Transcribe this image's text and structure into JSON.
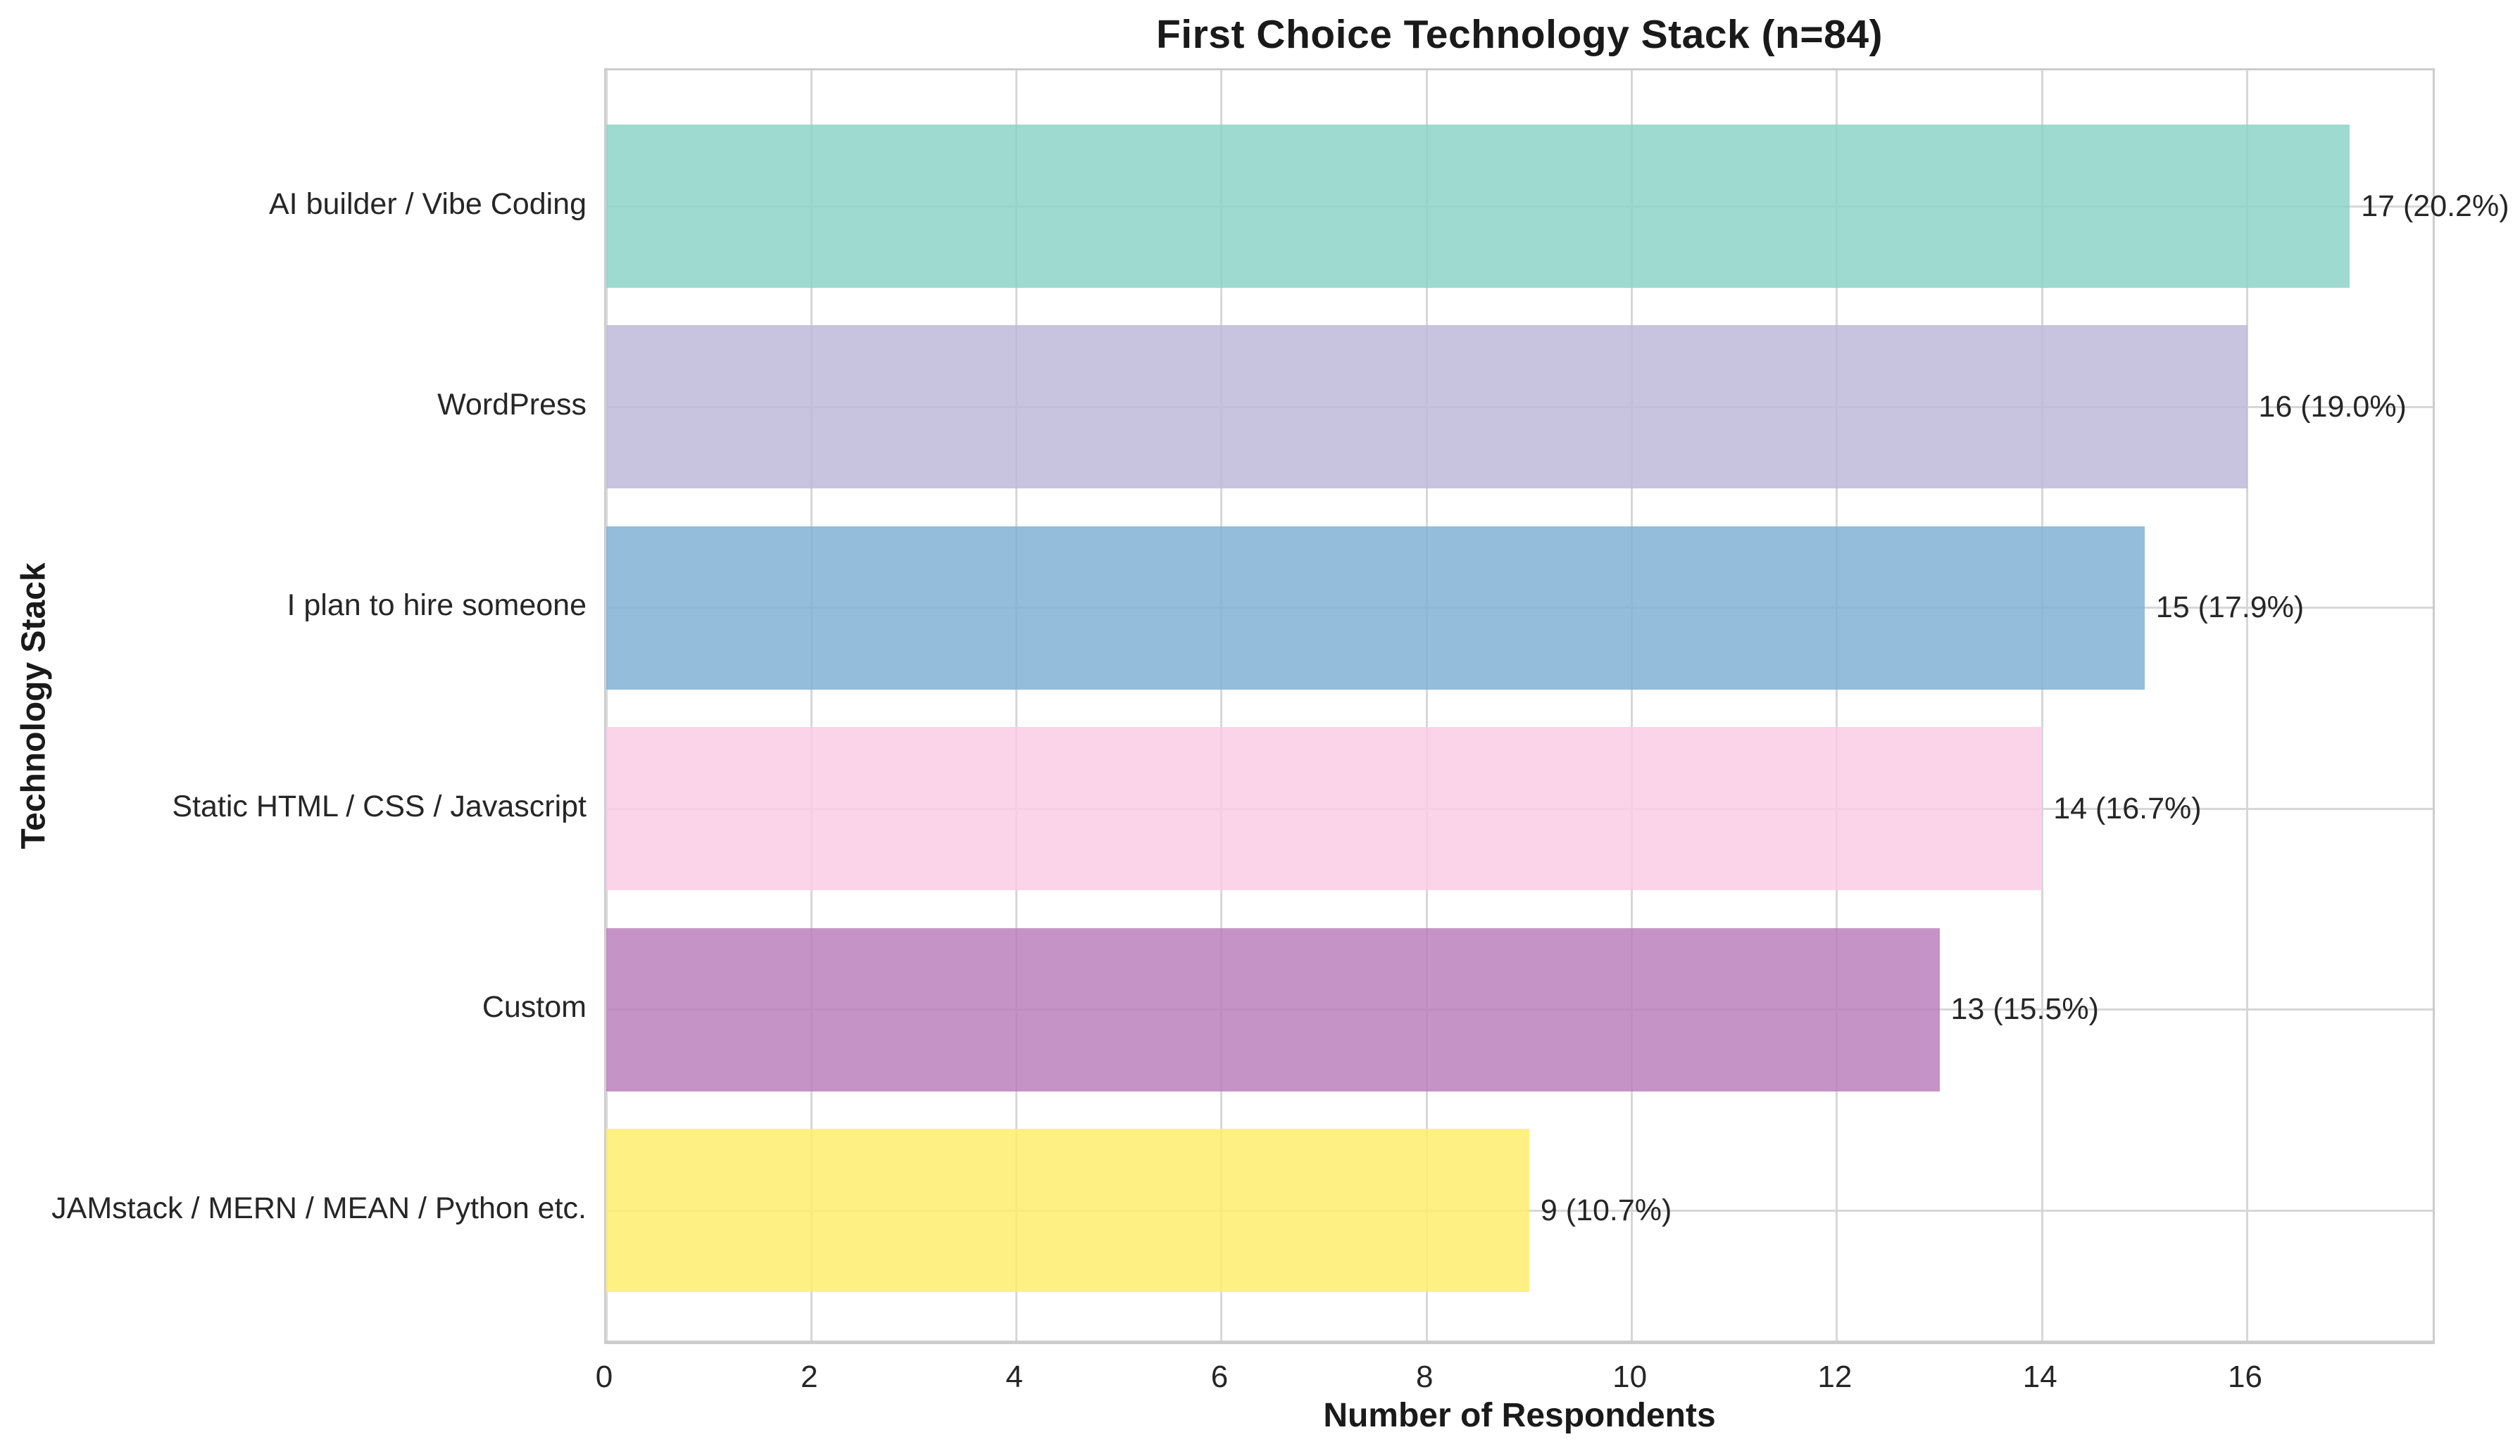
{
  "chart_data": {
    "type": "bar",
    "orientation": "horizontal",
    "title": "First Choice Technology Stack (n=84)",
    "n": 84,
    "xlabel": "Number of Respondents",
    "ylabel": "Technology Stack",
    "categories": [
      "AI builder / Vibe Coding",
      "WordPress",
      "I plan to hire someone",
      "Static HTML / CSS / Javascript",
      "Custom",
      "JAMstack / MERN / MEAN / Python etc."
    ],
    "values": [
      17,
      16,
      15,
      14,
      13,
      9
    ],
    "percentages": [
      20.2,
      19.0,
      17.9,
      16.7,
      15.5,
      10.7
    ],
    "bar_labels": [
      "17 (20.2%)",
      "16 (19.0%)",
      "15 (17.9%)",
      "14 (16.7%)",
      "13 (15.5%)",
      "9 (10.7%)"
    ],
    "bar_colors": [
      "#8dd3c7",
      "#bebada",
      "#80b1d3",
      "#fccde5",
      "#bc80bd",
      "#ffed6f"
    ],
    "bar_opacity": 0.85,
    "xticks": [
      0,
      2,
      4,
      6,
      8,
      10,
      12,
      14,
      16
    ],
    "xlim": [
      0,
      17.85
    ],
    "grid": true,
    "grid_color": "#d7d7d7",
    "spine_color": "#cccccc",
    "text_color": "#262626",
    "background": "#ffffff",
    "legend": "none"
  }
}
